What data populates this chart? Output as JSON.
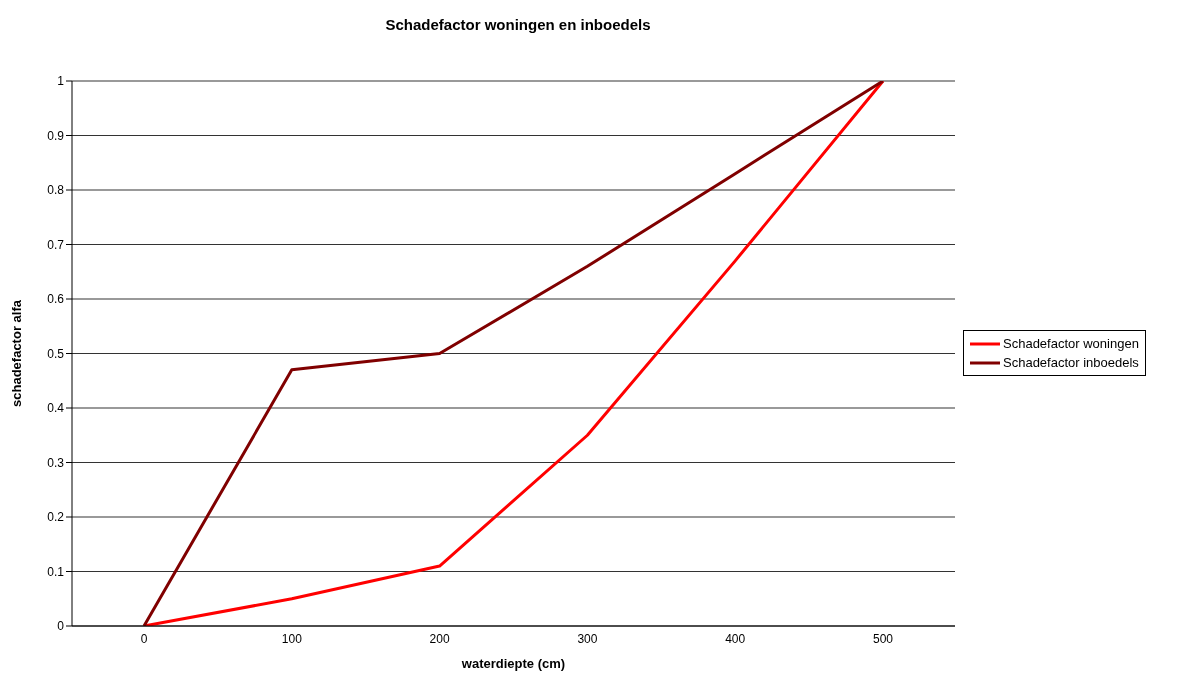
{
  "chart_data": {
    "type": "line",
    "title": "Schadefactor woningen en inboedels",
    "xlabel": "waterdiepte (cm)",
    "ylabel": "schadefactor alfa",
    "categories": [
      "0",
      "100",
      "200",
      "300",
      "400",
      "500"
    ],
    "series": [
      {
        "name": "Schadefactor woningen",
        "color": "#ff0000",
        "values": [
          0,
          0.05,
          0.11,
          0.35,
          0.67,
          1
        ]
      },
      {
        "name": "Schadefactor inboedels",
        "color": "#800000",
        "values": [
          0,
          0.47,
          0.5,
          0.66,
          0.83,
          1
        ]
      }
    ],
    "ylim": [
      0,
      1
    ],
    "yticks": [
      0,
      0.1,
      0.2,
      0.3,
      0.4,
      0.5,
      0.6,
      0.7,
      0.8,
      0.9,
      1
    ],
    "grid": "y",
    "legend": "right",
    "marker": "none",
    "line_style": "solid"
  }
}
